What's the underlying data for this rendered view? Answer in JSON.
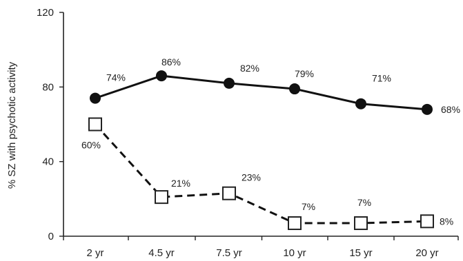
{
  "chart_data": {
    "type": "line",
    "ylabel": "% SZ with psychotic activity",
    "xlabel": "",
    "categories": [
      "2 yr",
      "4.5 yr",
      "7.5 yr",
      "10 yr",
      "15 yr",
      "20 yr"
    ],
    "ylim": [
      0,
      120
    ],
    "yticks": [
      0,
      40,
      80,
      120
    ],
    "grid": false,
    "series": [
      {
        "style": "solid",
        "marker": "filled-circle",
        "values": [
          74,
          86,
          82,
          79,
          71,
          68
        ],
        "labels": [
          "74%",
          "86%",
          "82%",
          "79%",
          "71%",
          "68%"
        ]
      },
      {
        "style": "dashed",
        "marker": "open-square",
        "values": [
          60,
          21,
          23,
          7,
          7,
          8
        ],
        "labels": [
          "60%",
          "21%",
          "23%",
          "7%",
          "7%",
          "8%"
        ]
      }
    ]
  }
}
